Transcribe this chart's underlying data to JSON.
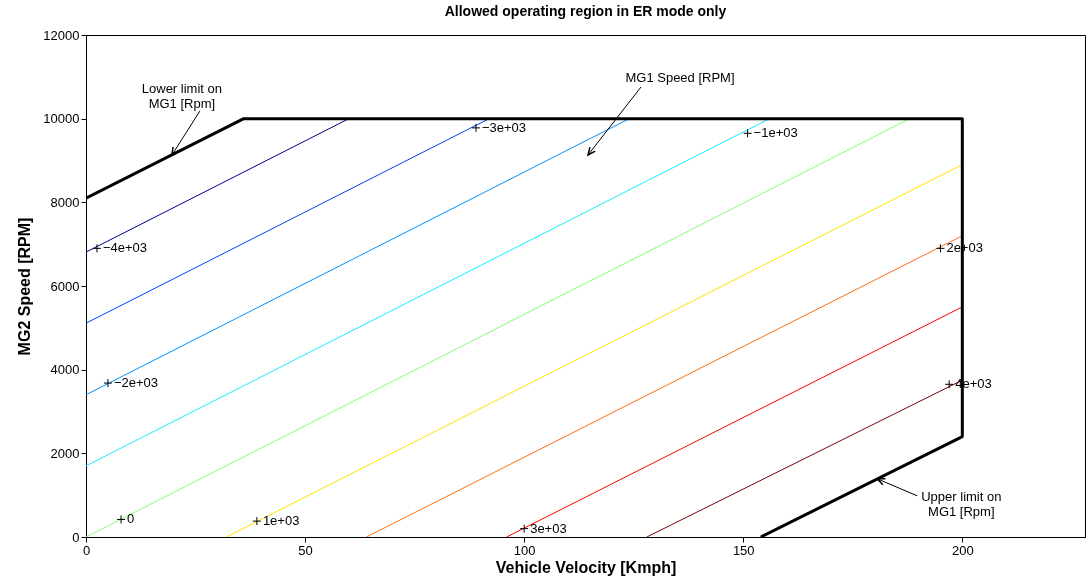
{
  "chart_data": {
    "type": "line",
    "title": "Allowed operating region in ER mode only",
    "xlabel": "Vehicle Velocity [Kmph]",
    "ylabel": "MG2 Speed [RPM]",
    "xlim": [
      0,
      228
    ],
    "xticks": [
      0,
      50,
      100,
      150,
      200
    ],
    "ylim": [
      0,
      12000
    ],
    "yticks": [
      0,
      2000,
      4000,
      6000,
      8000,
      10000,
      12000
    ],
    "grid": false,
    "series": [
      {
        "color": "#000090",
        "x": [
          0,
          60
        ],
        "values": [
          6810,
          10000
        ]
      },
      {
        "color": "#0040ff",
        "x": [
          0,
          92
        ],
        "values": [
          5110,
          10000
        ]
      },
      {
        "color": "#0090ff",
        "x": [
          0,
          124
        ],
        "values": [
          3400,
          10000
        ]
      },
      {
        "color": "#10f0ff",
        "x": [
          0,
          156
        ],
        "values": [
          1700,
          10000
        ]
      },
      {
        "color": "#80ff70",
        "x": [
          0,
          188
        ],
        "values": [
          0,
          10000
        ]
      },
      {
        "color": "#ffe000",
        "x": [
          32,
          200
        ],
        "values": [
          0,
          8900
        ]
      },
      {
        "color": "#ff7010",
        "x": [
          64,
          200
        ],
        "values": [
          0,
          7200
        ]
      },
      {
        "color": "#ff0000",
        "x": [
          96,
          200
        ],
        "values": [
          0,
          5500
        ]
      },
      {
        "color": "#800000",
        "x": [
          128,
          200
        ],
        "values": [
          0,
          3750
        ]
      },
      {
        "color": "#000000",
        "x": [
          0,
          36,
          200,
          200,
          154
        ],
        "values": [
          8100,
          10000,
          10000,
          2400,
          0
        ]
      },
      {
        "type": "scatter",
        "marker": "cross",
        "color": "#000000",
        "x": [
          2.5,
          89,
          5,
          151,
          8,
          39,
          195,
          100,
          197
        ],
        "values": [
          6900,
          9780,
          3680,
          9650,
          420,
          380,
          6900,
          200,
          3650
        ]
      }
    ],
    "annotations": [
      {
        "text": "−4e+03",
        "x": 2.5,
        "y": 6900
      },
      {
        "text": "−3e+03",
        "x": 89,
        "y": 9780
      },
      {
        "text": "−2e+03",
        "x": 5,
        "y": 3680
      },
      {
        "text": "−1e+03",
        "x": 151,
        "y": 9650
      },
      {
        "text": "0",
        "x": 8,
        "y": 420
      },
      {
        "text": "1e+03",
        "x": 39,
        "y": 380
      },
      {
        "text": "2e+03",
        "x": 195,
        "y": 6900
      },
      {
        "text": "3e+03",
        "x": 100,
        "y": 200
      },
      {
        "text": "4e+03",
        "x": 197,
        "y": 3650
      },
      {
        "text": "Lower limit on\nMG1 [Rpm]",
        "x": 19.6,
        "y": 9130
      },
      "MG1 Speed [RPM]",
      {
        "text": "Upper limit on\nMG1 [Rpm]",
        "x": 180.6,
        "y": 1390
      }
    ]
  }
}
